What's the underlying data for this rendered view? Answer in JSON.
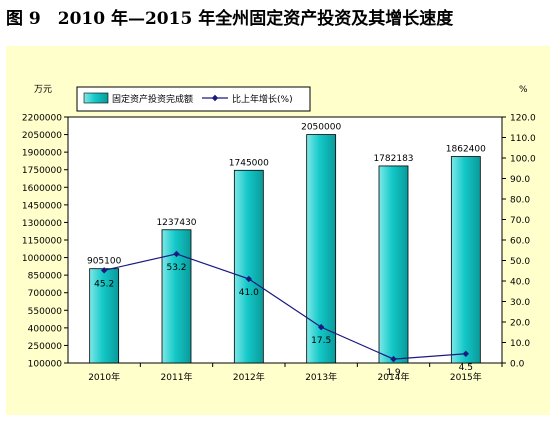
{
  "figure_title": "图 9　2010 年—2015 年全州固定资产投资及其增长速度",
  "chart_data": {
    "type": "bar",
    "categories": [
      "2010年",
      "2011年",
      "2012年",
      "2013年",
      "2014年",
      "2015年"
    ],
    "series": [
      {
        "name": "固定资产投资完成额",
        "type": "bar",
        "axis": "left",
        "values": [
          905100,
          1237430,
          1745000,
          2050000,
          1782183,
          1862400
        ],
        "labels": [
          "905100",
          "1237430",
          "1745000",
          "2050000",
          "1782183",
          "1862400"
        ]
      },
      {
        "name": "比上年增长(%)",
        "type": "line",
        "axis": "right",
        "values": [
          45.2,
          53.2,
          41.0,
          17.5,
          1.9,
          4.5
        ],
        "labels": [
          "45.2",
          "53.2",
          "41.0",
          "17.5",
          "1.9",
          "4.5"
        ]
      }
    ],
    "y_left": {
      "unit_label": "万元",
      "min": 100000,
      "max": 2200000,
      "ticks": [
        "2200000",
        "2050000",
        "1900000",
        "1750000",
        "1600000",
        "1450000",
        "1300000",
        "1150000",
        "1000000",
        "850000",
        "700000",
        "550000",
        "400000",
        "250000",
        "100000"
      ]
    },
    "y_right": {
      "unit_label": "%",
      "min": 0,
      "max": 120,
      "ticks": [
        "120.0",
        "110.0",
        "100.0",
        "90.0",
        "80.0",
        "70.0",
        "60.0",
        "50.0",
        "40.0",
        "30.0",
        "20.0",
        "10.0",
        "0.0"
      ]
    },
    "legend_position": "top-left",
    "grid": false,
    "colors": {
      "panel_background": "#ffffcc",
      "plot_background": "#ffffff",
      "bar_light": "#7ee8e8",
      "bar_mid": "#14c8c8",
      "bar_dark": "#0a9a9a",
      "line": "#1a1a80"
    }
  }
}
